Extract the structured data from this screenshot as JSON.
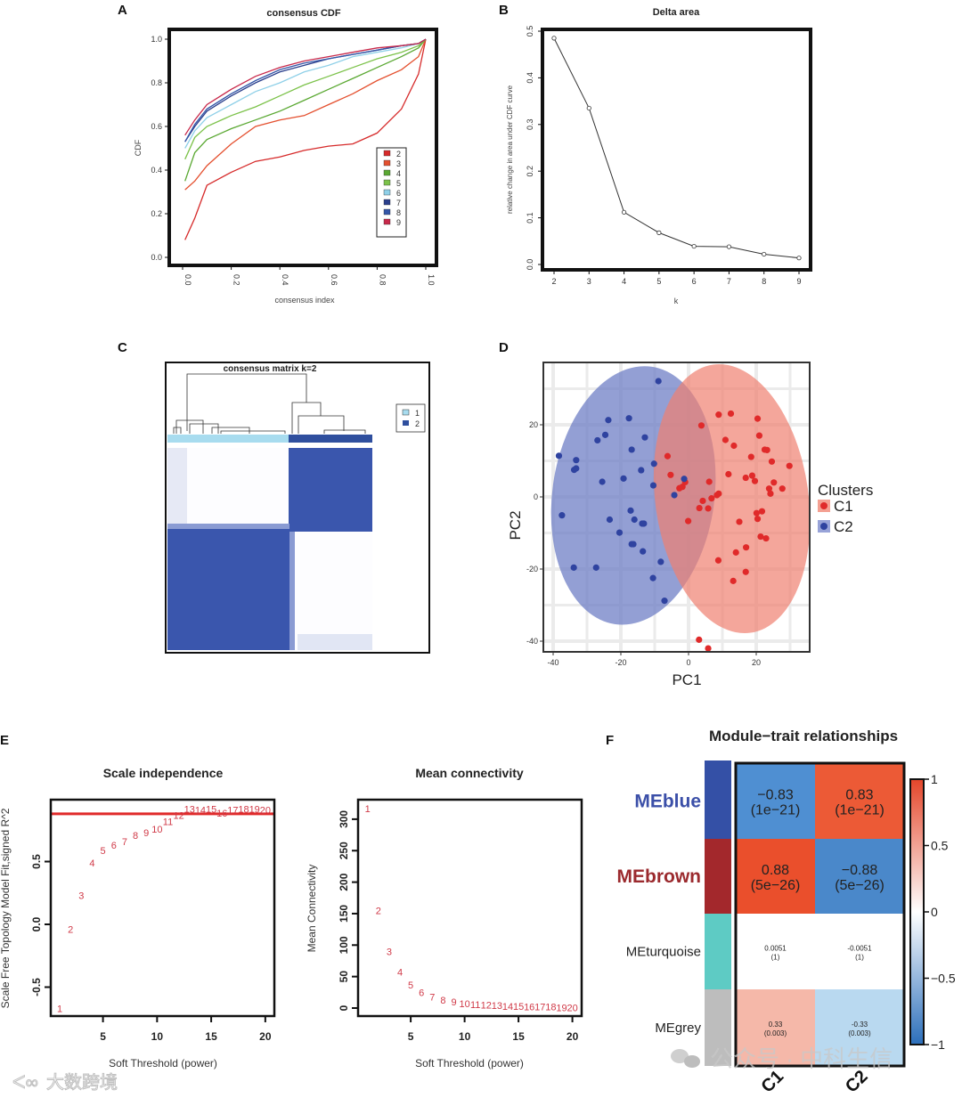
{
  "panel_labels": {
    "a": "A",
    "b": "B",
    "c": "C",
    "d": "D",
    "e": "E",
    "f": "F"
  },
  "watermarks": {
    "bottom_right": "公众号 · 中科生信",
    "bottom_left": "大数跨境"
  },
  "chart_data": [
    {
      "id": "A",
      "type": "line",
      "title": "consensus CDF",
      "xlabel": "consensus index",
      "ylabel": "CDF",
      "xlim": [
        0,
        1
      ],
      "ylim": [
        0,
        1
      ],
      "xticks": [
        "0.0",
        "0.2",
        "0.4",
        "0.6",
        "0.8",
        "1.0"
      ],
      "yticks": [
        "0.0",
        "0.2",
        "0.4",
        "0.6",
        "0.8",
        "1.0"
      ],
      "x": [
        0.01,
        0.05,
        0.1,
        0.2,
        0.3,
        0.4,
        0.5,
        0.6,
        0.7,
        0.8,
        0.9,
        0.97,
        1.0
      ],
      "legend_position": "right",
      "series": [
        {
          "name": "2",
          "color": "#d62a2a",
          "values": [
            0.08,
            0.18,
            0.33,
            0.39,
            0.44,
            0.46,
            0.49,
            0.51,
            0.52,
            0.57,
            0.68,
            0.84,
            1.0
          ]
        },
        {
          "name": "3",
          "color": "#e4502f",
          "values": [
            0.31,
            0.35,
            0.42,
            0.52,
            0.6,
            0.63,
            0.65,
            0.7,
            0.75,
            0.81,
            0.86,
            0.92,
            1.0
          ]
        },
        {
          "name": "4",
          "color": "#5aa832",
          "values": [
            0.35,
            0.48,
            0.54,
            0.59,
            0.63,
            0.67,
            0.72,
            0.77,
            0.82,
            0.87,
            0.92,
            0.96,
            1.0
          ]
        },
        {
          "name": "5",
          "color": "#7cc24a",
          "values": [
            0.45,
            0.55,
            0.6,
            0.65,
            0.69,
            0.74,
            0.79,
            0.83,
            0.87,
            0.91,
            0.94,
            0.97,
            1.0
          ]
        },
        {
          "name": "6",
          "color": "#8fd0e8",
          "values": [
            0.5,
            0.58,
            0.64,
            0.7,
            0.76,
            0.8,
            0.85,
            0.88,
            0.92,
            0.94,
            0.96,
            0.98,
            1.0
          ]
        },
        {
          "name": "7",
          "color": "#2b3f8c",
          "values": [
            0.53,
            0.6,
            0.67,
            0.74,
            0.8,
            0.85,
            0.88,
            0.91,
            0.93,
            0.95,
            0.97,
            0.98,
            1.0
          ]
        },
        {
          "name": "8",
          "color": "#3356a8",
          "values": [
            0.53,
            0.61,
            0.68,
            0.75,
            0.81,
            0.86,
            0.89,
            0.91,
            0.93,
            0.95,
            0.97,
            0.98,
            1.0
          ]
        },
        {
          "name": "9",
          "color": "#c8284a",
          "values": [
            0.56,
            0.63,
            0.7,
            0.77,
            0.83,
            0.87,
            0.9,
            0.92,
            0.94,
            0.96,
            0.97,
            0.98,
            1.0
          ]
        }
      ]
    },
    {
      "id": "B",
      "type": "line",
      "title": "Delta area",
      "xlabel": "k",
      "ylabel": "relative change in area under CDF curve",
      "xlim": [
        2,
        9
      ],
      "ylim": [
        0,
        0.5
      ],
      "xticks": [
        "2",
        "3",
        "4",
        "5",
        "6",
        "7",
        "8",
        "9"
      ],
      "yticks": [
        "0.0",
        "0.1",
        "0.2",
        "0.3",
        "0.4",
        "0.5"
      ],
      "x": [
        2,
        3,
        4,
        5,
        6,
        7,
        8,
        9
      ],
      "values": [
        0.485,
        0.335,
        0.112,
        0.068,
        0.039,
        0.038,
        0.022,
        0.014
      ]
    },
    {
      "id": "C",
      "type": "heatmap",
      "title": "consensus matrix k=2",
      "legend": [
        {
          "name": "1",
          "color": "#a8dcef"
        },
        {
          "name": "2",
          "color": "#2f4f9e"
        }
      ],
      "cluster_colors": [
        "#a8dcef",
        "#2f4f9e"
      ],
      "fill_color": "#3a56ad"
    },
    {
      "id": "D",
      "type": "scatter",
      "xlabel": "PC1",
      "ylabel": "PC2",
      "legend_title": "Clusters",
      "legend_position": "right",
      "xlim": [
        -43,
        36
      ],
      "ylim": [
        -42,
        37
      ],
      "xticks": [
        "-40",
        "-20",
        "0",
        "20"
      ],
      "yticks": [
        "20",
        "0",
        "-20",
        "-40"
      ],
      "series": [
        {
          "name": "C1",
          "color": "#e02a2a",
          "ellipse_color": "#f08070",
          "points": [
            [
              -6.2,
              11.3
            ],
            [
              -5.3,
              6.1
            ],
            [
              -2.7,
              2.4
            ],
            [
              -1.8,
              2.8
            ],
            [
              -1,
              4.1
            ],
            [
              4.2,
              -1.1
            ],
            [
              3.2,
              -3.1
            ],
            [
              -0.1,
              -6.7
            ],
            [
              8.9,
              22.8
            ],
            [
              12.5,
              23.1
            ],
            [
              20.4,
              21.7
            ],
            [
              3.8,
              19.8
            ],
            [
              20.9,
              17
            ],
            [
              10.9,
              15.8
            ],
            [
              13.4,
              14.2
            ],
            [
              22.5,
              13.1
            ],
            [
              23.2,
              13
            ],
            [
              18.5,
              11.1
            ],
            [
              24.6,
              9.8
            ],
            [
              29.8,
              8.6
            ],
            [
              11.8,
              6.3
            ],
            [
              16.9,
              5.3
            ],
            [
              18.8,
              5.9
            ],
            [
              19.6,
              4.4
            ],
            [
              6.1,
              4.2
            ],
            [
              25.2,
              4
            ],
            [
              23.8,
              2.3
            ],
            [
              27.7,
              2.3
            ],
            [
              24.2,
              0.9
            ],
            [
              8.9,
              0.9
            ],
            [
              8.4,
              0.5
            ],
            [
              6.8,
              -0.4
            ],
            [
              5.8,
              -3.2
            ],
            [
              21.7,
              -4
            ],
            [
              20.1,
              -4.5
            ],
            [
              20.4,
              -6.1
            ],
            [
              15,
              -6.9
            ],
            [
              21.3,
              -11
            ],
            [
              22.9,
              -11.5
            ],
            [
              17,
              -14
            ],
            [
              14,
              -15.4
            ],
            [
              8.8,
              -17.6
            ],
            [
              16.9,
              -20.8
            ],
            [
              13.2,
              -23.3
            ],
            [
              3.1,
              -39.6
            ],
            [
              5.8,
              -42
            ]
          ]
        },
        {
          "name": "C2",
          "color": "#2f43a0",
          "ellipse_color": "#6f7fc6",
          "points": [
            [
              -8.9,
              32.1
            ],
            [
              -23.7,
              21.3
            ],
            [
              -17.6,
              21.8
            ],
            [
              -24.6,
              17.2
            ],
            [
              -26.9,
              15.7
            ],
            [
              -12.9,
              16.5
            ],
            [
              -16.8,
              13.1
            ],
            [
              -38.3,
              11.4
            ],
            [
              -33.2,
              10.2
            ],
            [
              -33.8,
              7.5
            ],
            [
              -33.2,
              7.9
            ],
            [
              -10.2,
              9.2
            ],
            [
              -14,
              7.4
            ],
            [
              -19.2,
              5.1
            ],
            [
              -25.5,
              4.2
            ],
            [
              -10.4,
              3.2
            ],
            [
              -1.3,
              5.0
            ],
            [
              -4.2,
              0.5
            ],
            [
              -37.4,
              -5.1
            ],
            [
              -23.3,
              -6.3
            ],
            [
              -17.1,
              -3.8
            ],
            [
              -16,
              -6.3
            ],
            [
              -13.7,
              -7.4
            ],
            [
              -13.2,
              -7.4
            ],
            [
              -20.4,
              -9.9
            ],
            [
              -16.8,
              -13.1
            ],
            [
              -16.3,
              -13.1
            ],
            [
              -13.5,
              -15.1
            ],
            [
              -8.2,
              -18
            ],
            [
              -33.9,
              -19.6
            ],
            [
              -27.3,
              -19.6
            ],
            [
              -10.5,
              -22.5
            ],
            [
              -7.1,
              -28.8
            ]
          ]
        }
      ]
    },
    {
      "id": "E1",
      "type": "scatter",
      "title": "Scale independence",
      "xlabel": "Soft Threshold (power)",
      "ylabel": "Scale Free Topology Model Fit,signed R^2",
      "xlim": [
        0.2,
        20.8
      ],
      "ylim": [
        -0.72,
        0.97
      ],
      "xticks": [
        "5",
        "10",
        "15",
        "20"
      ],
      "yticks": [
        "-0.5",
        "0.0",
        "0.5"
      ],
      "threshold_line": 0.88,
      "color": "#d03a48",
      "x": [
        1,
        2,
        3,
        4,
        5,
        6,
        7,
        8,
        9,
        10,
        11,
        12,
        13,
        14,
        15,
        16,
        17,
        18,
        19,
        20
      ],
      "values": [
        -0.67,
        -0.04,
        0.23,
        0.49,
        0.59,
        0.63,
        0.66,
        0.71,
        0.73,
        0.76,
        0.82,
        0.87,
        0.92,
        0.91,
        0.92,
        0.885,
        0.91,
        0.92,
        0.92,
        0.91
      ]
    },
    {
      "id": "E2",
      "type": "scatter",
      "title": "Mean connectivity",
      "xlabel": "Soft Threshold (power)",
      "ylabel": "Mean Connectivity",
      "xlim": [
        0.2,
        20.8
      ],
      "ylim": [
        -12,
        330
      ],
      "xticks": [
        "5",
        "10",
        "15",
        "20"
      ],
      "yticks": [
        "0",
        "50",
        "100",
        "150",
        "200",
        "250",
        "300"
      ],
      "color": "#d03a48",
      "x": [
        1,
        2,
        3,
        4,
        5,
        6,
        7,
        8,
        9,
        10,
        11,
        12,
        13,
        14,
        15,
        16,
        17,
        18,
        19,
        20
      ],
      "values": [
        317,
        155,
        90,
        57,
        37,
        25,
        18,
        13,
        10,
        7,
        6,
        5,
        4,
        3,
        3,
        2,
        2,
        2,
        1,
        1
      ]
    },
    {
      "id": "F",
      "type": "heatmap",
      "title": "Module−trait relationships",
      "rows": [
        {
          "name": "MEblue",
          "strip": "#3450a6",
          "label_color": "#3b4fa8",
          "major": true
        },
        {
          "name": "MEbrown",
          "strip": "#a3282c",
          "label_color": "#9b2a2e",
          "major": true
        },
        {
          "name": "MEturquoise",
          "strip": "#5ecbc4",
          "label_color": "#222",
          "major": false
        },
        {
          "name": "MEgrey",
          "strip": "#bdbdbd",
          "label_color": "#222",
          "major": false
        }
      ],
      "columns": [
        "C1",
        "C2"
      ],
      "values": [
        [
          -0.83,
          0.83
        ],
        [
          0.88,
          -0.88
        ],
        [
          0.0051,
          -0.0051
        ],
        [
          0.33,
          -0.33
        ]
      ],
      "cell_text": [
        [
          "−0.83",
          "(1e−21)",
          "0.83",
          "(1e−21)"
        ],
        [
          "0.88",
          "(5e−26)",
          "−0.88",
          "(5e−26)"
        ],
        [
          "0.0051",
          "(1)",
          "-0.0051",
          "(1)"
        ],
        [
          "0.33",
          "(0.003)",
          "-0.33",
          "(0.003)"
        ]
      ],
      "cell_colors": [
        [
          "#4f8fd2",
          "#ec5a36"
        ],
        [
          "#ea4f2c",
          "#4a88ca"
        ],
        [
          "#ffffff",
          "#ffffff"
        ],
        [
          "#f5b8a9",
          "#b9d9f0"
        ]
      ],
      "colorbar_ticks": [
        "1",
        "0.5",
        "0",
        "−0.5",
        "−1"
      ],
      "colorbar_range": [
        -1,
        1
      ],
      "low_color": "#2c6fbb",
      "mid_color": "#ffffff",
      "high_color": "#e4462a"
    }
  ]
}
